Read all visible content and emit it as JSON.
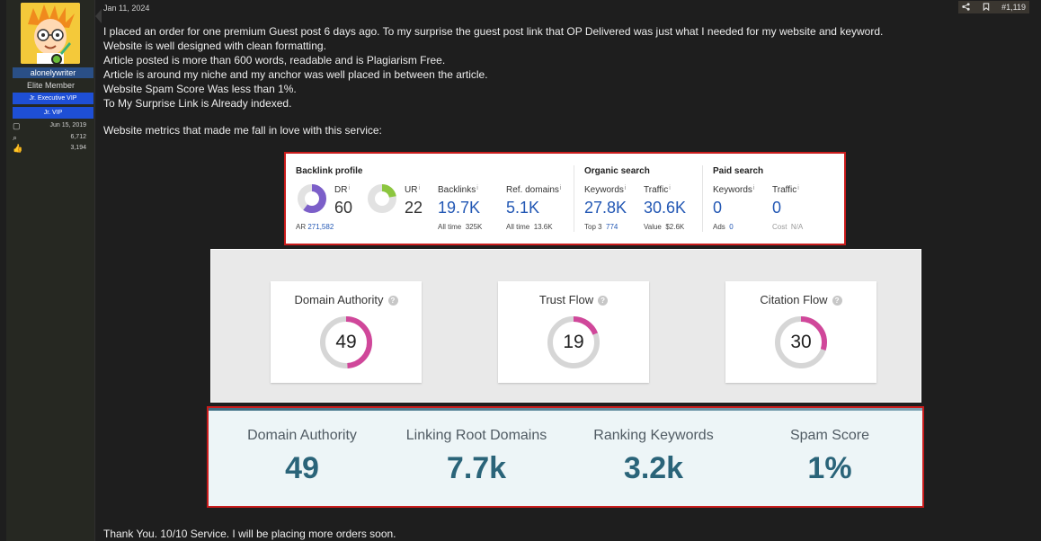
{
  "post": {
    "date": "Jan 11, 2024",
    "number": "#1,119",
    "lines": [
      "I placed an order for one premium Guest post 6 days ago. To my surprise the guest post link that OP Delivered was just what I needed for my website and keyword.",
      "Website is well designed with clean formatting.",
      "Article posted is more than 600 words, readable and is Plagiarism Free.",
      "Article is around my niche and my anchor was well placed in between the article.",
      "Website Spam Score Was less than 1%.",
      "To My Surprise Link is Already indexed."
    ],
    "metrics_intro": "Website metrics that made me fall in love with this service:",
    "closing": "Thank You. 10/10 Service. I will be placing more orders soon."
  },
  "user": {
    "name": "alonelywriter",
    "title": "Elite Member",
    "banners": [
      "Jr. Executive VIP",
      "Jr. VIP"
    ],
    "stats": [
      {
        "icon": "calendar-icon",
        "glyph": "▢",
        "value": "Jun 15, 2019"
      },
      {
        "icon": "messages-icon",
        "glyph": "⌕",
        "value": "6,712"
      },
      {
        "icon": "thumbs-up-icon",
        "glyph": "👍",
        "value": "3,194"
      }
    ]
  },
  "ahrefs": {
    "backlink_profile": {
      "title": "Backlink profile",
      "dr_label": "DR",
      "dr_value": "60",
      "ar_label": "AR",
      "ar_value": "271,582",
      "ur_label": "UR",
      "ur_value": "22",
      "backlinks_label": "Backlinks",
      "backlinks_value": "19.7K",
      "backlinks_alltime_label": "All time",
      "backlinks_alltime_value": "325K",
      "refdomains_label": "Ref. domains",
      "refdomains_value": "5.1K",
      "refdomains_alltime_label": "All time",
      "refdomains_alltime_value": "13.6K"
    },
    "organic_search": {
      "title": "Organic search",
      "keywords_label": "Keywords",
      "keywords_value": "27.8K",
      "top3_label": "Top 3",
      "top3_value": "774",
      "traffic_label": "Traffic",
      "traffic_value": "30.6K",
      "value_label": "Value",
      "value_value": "$2.6K"
    },
    "paid_search": {
      "title": "Paid search",
      "keywords_label": "Keywords",
      "keywords_value": "0",
      "ads_label": "Ads",
      "ads_value": "0",
      "traffic_label": "Traffic",
      "traffic_value": "0",
      "cost_label": "Cost",
      "cost_value": "N/A"
    },
    "info_mark": "i",
    "colors": {
      "accent": "#2257b4",
      "dr_ring": "#7c5fc9",
      "ur_ring": "#8cc63f"
    },
    "dr_fraction": 0.6,
    "ur_fraction": 0.22
  },
  "majestic": {
    "boxes": [
      {
        "label": "Domain Authority",
        "value": "49",
        "fraction": 0.49
      },
      {
        "label": "Trust Flow",
        "value": "19",
        "fraction": 0.19
      },
      {
        "label": "Citation Flow",
        "value": "30",
        "fraction": 0.3
      }
    ],
    "help_mark": "?",
    "colors": {
      "ring": "#d0479a",
      "track": "#d6d6d6"
    }
  },
  "moz": {
    "metrics": [
      {
        "label": "Domain Authority",
        "value": "49"
      },
      {
        "label": "Linking Root Domains",
        "value": "7.7k"
      },
      {
        "label": "Ranking Keywords",
        "value": "3.2k"
      },
      {
        "label": "Spam Score",
        "value": "1%"
      }
    ],
    "colors": {
      "value": "#2a6479",
      "bg": "#edf5f7"
    }
  }
}
